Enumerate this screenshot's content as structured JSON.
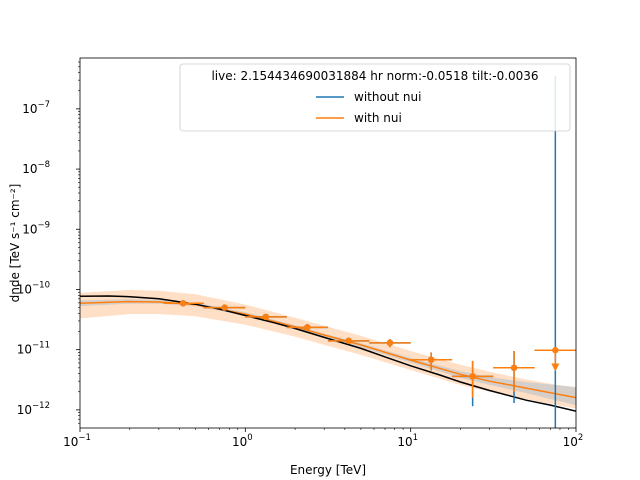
{
  "chart_data": {
    "type": "scatter",
    "title": "",
    "xlabel": "Energy [TeV]",
    "ylabel": "dnde [TeV s⁻¹ cm⁻²]",
    "xscale": "log",
    "yscale": "log",
    "xlim": [
      0.1,
      100
    ],
    "ylim": [
      5e-13,
      7e-07
    ],
    "x_ticks": [
      {
        "value": 0.1,
        "base": "10",
        "exp": "−1"
      },
      {
        "value": 1,
        "base": "10",
        "exp": "0"
      },
      {
        "value": 10,
        "base": "10",
        "exp": "1"
      },
      {
        "value": 100,
        "base": "10",
        "exp": "2"
      }
    ],
    "y_ticks": [
      {
        "value": 1e-12,
        "base": "10",
        "exp": "−12"
      },
      {
        "value": 1e-11,
        "base": "10",
        "exp": "−11"
      },
      {
        "value": 1e-10,
        "base": "10",
        "exp": "−10"
      },
      {
        "value": 1e-09,
        "base": "10",
        "exp": "−9"
      },
      {
        "value": 1e-08,
        "base": "10",
        "exp": "−8"
      },
      {
        "value": 1e-07,
        "base": "10",
        "exp": "−7"
      }
    ],
    "legend": {
      "title": "live: 2.154434690031884 hr norm:-0.0518 tilt:-0.0036",
      "placement": "upper-right",
      "entries": [
        {
          "label": "without nui",
          "color": "#1f77b4"
        },
        {
          "label": "with nui",
          "color": "#ff7f0e"
        }
      ]
    },
    "colors": {
      "without_nui": "#1f77b4",
      "with_nui": "#ff7f0e",
      "model": "#000000",
      "band_with_nui": "#ffdcc0",
      "band_without_nui": "#c8c8c8"
    },
    "model_curve": {
      "name": "model",
      "x": [
        0.1,
        0.15,
        0.2,
        0.3,
        0.5,
        0.7,
        1,
        1.5,
        2,
        3,
        5,
        7,
        10,
        15,
        20,
        30,
        50,
        70,
        100
      ],
      "y": [
        7.7e-11,
        7.8e-11,
        7.6e-11,
        7e-11,
        5.7e-11,
        4.7e-11,
        3.7e-11,
        2.8e-11,
        2.25e-11,
        1.6e-11,
        1.05e-11,
        7.6e-12,
        5.4e-12,
        3.8e-12,
        2.9e-12,
        2.1e-12,
        1.45e-12,
        1.2e-12,
        9.5e-13
      ]
    },
    "band_with_nui": {
      "x": [
        0.1,
        0.2,
        0.3,
        0.5,
        1,
        2,
        3,
        5,
        10,
        20,
        30,
        50,
        100
      ],
      "upper": [
        8.8e-11,
        9.8e-11,
        9.5e-11,
        8.3e-11,
        5.6e-11,
        3.4e-11,
        2.5e-11,
        1.7e-11,
        9.5e-12,
        5.6e-12,
        4.3e-12,
        3.2e-12,
        2.3e-12
      ],
      "lower": [
        3.3e-11,
        3.9e-11,
        3.9e-11,
        3.6e-11,
        2.6e-11,
        1.65e-11,
        1.2e-11,
        8.2e-12,
        4.6e-12,
        2.6e-12,
        2e-12,
        1.5e-12,
        1.05e-12
      ],
      "center": [
        5.9e-11,
        6.3e-11,
        6.2e-11,
        5.6e-11,
        3.9e-11,
        2.4e-11,
        1.75e-11,
        1.2e-11,
        6.7e-12,
        3.9e-12,
        3e-12,
        2.3e-12,
        1.6e-12
      ]
    },
    "band_without_nui": {
      "x": [
        0.1,
        0.2,
        0.3,
        0.5,
        1,
        2,
        3,
        5,
        10,
        20,
        30,
        50,
        100
      ],
      "upper": [
        6.6e-11,
        6.9e-11,
        6.7e-11,
        6e-11,
        4.2e-11,
        2.55e-11,
        1.85e-11,
        1.28e-11,
        7.3e-12,
        4.4e-12,
        3.5e-12,
        2.9e-12,
        2.4e-12
      ],
      "lower": [
        5.3e-11,
        5.8e-11,
        5.8e-11,
        5.3e-11,
        3.7e-11,
        2.25e-11,
        1.62e-11,
        1.1e-11,
        6.1e-12,
        3.4e-12,
        2.6e-12,
        1.9e-12,
        1.2e-12
      ]
    },
    "points_without_nui": [
      {
        "x": 0.42,
        "xlo": 0.32,
        "xhi": 0.56,
        "y": 5.9e-11,
        "ylo": 5.4e-11,
        "yhi": 6.4e-11
      },
      {
        "x": 0.75,
        "xlo": 0.56,
        "xhi": 1.0,
        "y": 5e-11,
        "ylo": 4.6e-11,
        "yhi": 5.4e-11
      },
      {
        "x": 1.33,
        "xlo": 1.0,
        "xhi": 1.78,
        "y": 3.5e-11,
        "ylo": 3.2e-11,
        "yhi": 3.8e-11
      },
      {
        "x": 2.37,
        "xlo": 1.78,
        "xhi": 3.16,
        "y": 2.35e-11,
        "ylo": 2.15e-11,
        "yhi": 2.55e-11
      },
      {
        "x": 4.22,
        "xlo": 3.16,
        "xhi": 5.62,
        "y": 1.4e-11,
        "ylo": 1.25e-11,
        "yhi": 1.55e-11
      },
      {
        "x": 7.5,
        "xlo": 5.62,
        "xhi": 10.0,
        "y": 1.3e-11,
        "ylo": 1.1e-11,
        "yhi": 1.5e-11
      },
      {
        "x": 13.3,
        "xlo": 10.0,
        "xhi": 17.8,
        "y": 6.8e-12,
        "ylo": 4.5e-12,
        "yhi": 9e-12
      },
      {
        "x": 23.7,
        "xlo": 17.8,
        "xhi": 31.6,
        "y": 3.6e-12,
        "ylo": 1.15e-12,
        "yhi": 6.5e-12
      },
      {
        "x": 42.2,
        "xlo": 31.6,
        "xhi": 56.2,
        "y": 5e-12,
        "ylo": 1.3e-12,
        "yhi": 9.5e-12
      }
    ],
    "upper_limit_without_nui": {
      "x": 75,
      "xlo": 56.2,
      "xhi": 100,
      "y": 3.5e-07,
      "ylo": 5e-13
    },
    "points_with_nui": [
      {
        "x": 0.42,
        "xlo": 0.32,
        "xhi": 0.56,
        "y": 5.9e-11,
        "ylo": 5.4e-11,
        "yhi": 6.4e-11
      },
      {
        "x": 0.75,
        "xlo": 0.56,
        "xhi": 1.0,
        "y": 5e-11,
        "ylo": 4.6e-11,
        "yhi": 5.4e-11
      },
      {
        "x": 1.33,
        "xlo": 1.0,
        "xhi": 1.78,
        "y": 3.5e-11,
        "ylo": 3.2e-11,
        "yhi": 3.8e-11
      },
      {
        "x": 2.37,
        "xlo": 1.78,
        "xhi": 3.16,
        "y": 2.35e-11,
        "ylo": 2.15e-11,
        "yhi": 2.55e-11
      },
      {
        "x": 4.22,
        "xlo": 3.16,
        "xhi": 5.62,
        "y": 1.4e-11,
        "ylo": 1.25e-11,
        "yhi": 1.55e-11
      },
      {
        "x": 7.5,
        "xlo": 5.62,
        "xhi": 10.0,
        "y": 1.3e-11,
        "ylo": 1.1e-11,
        "yhi": 1.5e-11
      },
      {
        "x": 13.3,
        "xlo": 10.0,
        "xhi": 17.8,
        "y": 6.8e-12,
        "ylo": 4.5e-12,
        "yhi": 9e-12
      },
      {
        "x": 23.7,
        "xlo": 17.8,
        "xhi": 31.6,
        "y": 3.6e-12,
        "ylo": 1.6e-12,
        "yhi": 6.5e-12
      },
      {
        "x": 42.2,
        "xlo": 31.6,
        "xhi": 56.2,
        "y": 5e-12,
        "ylo": 2e-12,
        "yhi": 9.5e-12
      }
    ],
    "upper_limit_with_nui": {
      "x": 75,
      "xlo": 56.2,
      "xhi": 100,
      "y": 9.8e-12,
      "arrow_to": 4.5e-12
    }
  }
}
